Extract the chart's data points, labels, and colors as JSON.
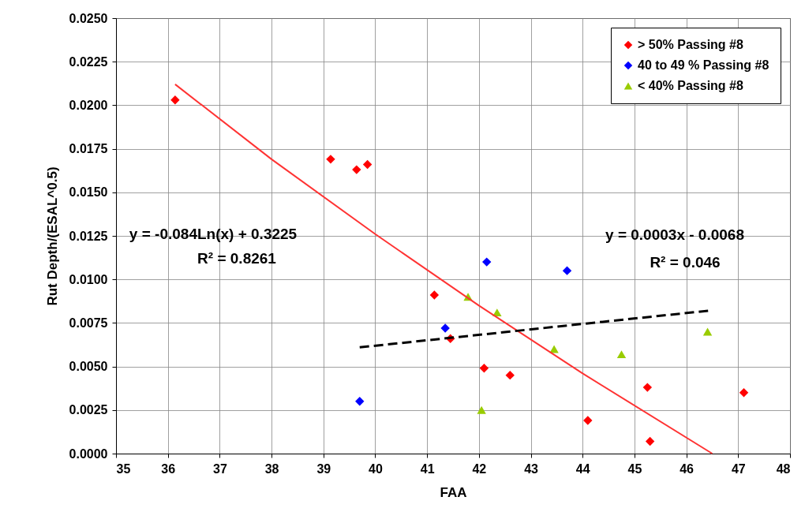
{
  "chart_data": {
    "type": "scatter",
    "xlabel": "FAA",
    "ylabel": "Rut Depth/(ESAL^0.5)",
    "xlim": [
      35,
      48
    ],
    "xticks": [
      35,
      36,
      37,
      38,
      39,
      40,
      41,
      42,
      43,
      44,
      45,
      46,
      47,
      48
    ],
    "ylim": [
      0,
      0.025
    ],
    "yticks": [
      {
        "value": 0,
        "label": "0.0000"
      },
      {
        "value": 0.0025,
        "label": "0.0025"
      },
      {
        "value": 0.005,
        "label": "0.0050"
      },
      {
        "value": 0.0075,
        "label": "0.0075"
      },
      {
        "value": 0.01,
        "label": "0.0100"
      },
      {
        "value": 0.0125,
        "label": "0.0125"
      },
      {
        "value": 0.015,
        "label": "0.0150"
      },
      {
        "value": 0.0175,
        "label": "0.0175"
      },
      {
        "value": 0.02,
        "label": "0.0200"
      },
      {
        "value": 0.0225,
        "label": "0.0225"
      },
      {
        "value": 0.025,
        "label": "0.0250"
      }
    ],
    "grid": true,
    "legend": "top right",
    "series": [
      {
        "name": "> 50% Passing #8",
        "type": "scatter",
        "marker": "diamond",
        "color": "#ff0000",
        "x": [
          36.14,
          39.14,
          39.64,
          39.85,
          41.14,
          41.45,
          42.1,
          42.6,
          44.1,
          45.25,
          45.3,
          47.11
        ],
        "values": [
          0.0203,
          0.0169,
          0.0163,
          0.0166,
          0.0091,
          0.0066,
          0.0049,
          0.0045,
          0.0019,
          0.0038,
          0.0007,
          0.0035
        ]
      },
      {
        "name": "40 to 49 % Passing #8",
        "type": "scatter",
        "marker": "diamond",
        "color": "#0000ff",
        "x": [
          39.7,
          41.35,
          42.15,
          43.7
        ],
        "values": [
          0.003,
          0.0072,
          0.011,
          0.0105
        ]
      },
      {
        "name": "< 40% Passing #8",
        "type": "scatter",
        "marker": "triangle",
        "color": "#99cc00",
        "x": [
          41.79,
          42.05,
          42.35,
          43.45,
          44.75,
          46.41
        ],
        "values": [
          0.009,
          0.0025,
          0.0081,
          0.006,
          0.0057,
          0.007
        ]
      },
      {
        "type": "line",
        "marker": "none",
        "line_style": "solid",
        "color": "#ff3333",
        "x": [
          36.14,
          38,
          40,
          42,
          44,
          46.5
        ],
        "values": [
          0.0212,
          0.0169,
          0.0126,
          0.0085,
          0.0046,
          0
        ]
      },
      {
        "type": "line",
        "marker": "none",
        "line_style": "dashed",
        "color": "#000000",
        "x": [
          39.7,
          46.42
        ],
        "values": [
          0.0061,
          0.0082
        ]
      }
    ],
    "annotations": [
      "y = -0.084Ln(x) + 0.3225",
      "R² = 0.8261",
      "y = 0.0003x - 0.0068",
      "R² = 0.046"
    ]
  }
}
